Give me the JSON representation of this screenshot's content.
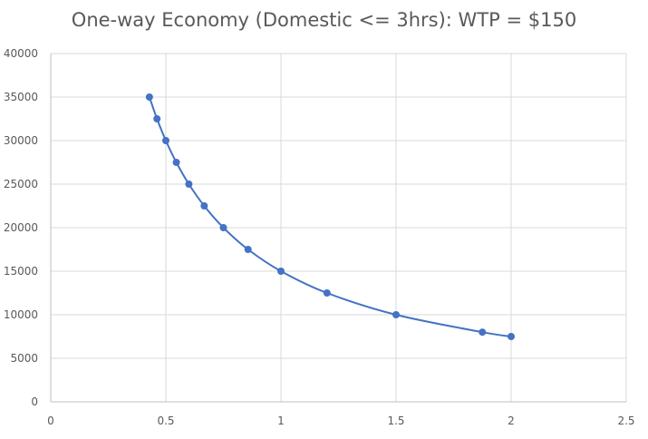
{
  "chart_data": {
    "type": "scatter",
    "title": "One-way Economy (Domestic <= 3hrs): WTP = $150",
    "xlabel": "",
    "ylabel": "",
    "xlim": [
      0,
      2.5
    ],
    "ylim": [
      0,
      40000
    ],
    "x_ticks": [
      0,
      0.5,
      1,
      1.5,
      2,
      2.5
    ],
    "x_tick_labels": [
      "0",
      "0.5",
      "1",
      "1.5",
      "2",
      "2.5"
    ],
    "y_ticks": [
      0,
      5000,
      10000,
      15000,
      20000,
      25000,
      30000,
      35000,
      40000
    ],
    "y_tick_labels": [
      "0",
      "5000",
      "10000",
      "15000",
      "20000",
      "25000",
      "30000",
      "35000",
      "40000"
    ],
    "grid": true,
    "legend": "none",
    "line_style": "smooth-with-markers",
    "color": "#4472c4",
    "series": [
      {
        "x": [
          0.4286,
          0.4615,
          0.5,
          0.5455,
          0.6,
          0.6667,
          0.75,
          0.8571,
          1,
          1.2,
          1.5,
          1.875,
          2
        ],
        "y": [
          35000,
          32500,
          30000,
          27500,
          25000,
          22500,
          20000,
          17500,
          15000,
          12500,
          10000,
          8000,
          7500
        ]
      }
    ]
  }
}
